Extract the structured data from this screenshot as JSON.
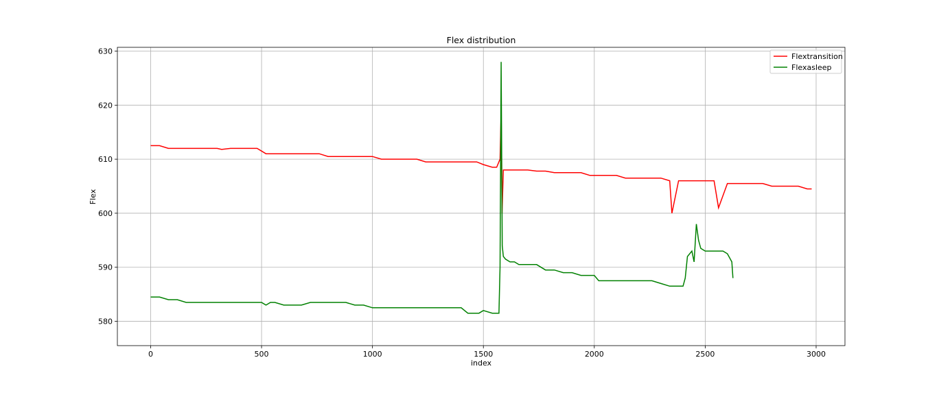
{
  "chart_data": {
    "type": "line",
    "title": "Flex distribution",
    "xlabel": "index",
    "ylabel": "Flex",
    "xlim": [
      -150,
      3130
    ],
    "ylim": [
      575.5,
      630.7
    ],
    "xticks": [
      0,
      500,
      1000,
      1500,
      2000,
      2500,
      3000
    ],
    "yticks": [
      580,
      590,
      600,
      610,
      620,
      630
    ],
    "grid": true,
    "legend_position": "top-right",
    "series": [
      {
        "name": "Flextransition",
        "color": "#ff0000",
        "x": [
          0,
          40,
          80,
          120,
          160,
          200,
          240,
          280,
          300,
          320,
          360,
          400,
          440,
          480,
          500,
          520,
          560,
          600,
          640,
          680,
          720,
          760,
          800,
          840,
          880,
          920,
          960,
          1000,
          1040,
          1080,
          1120,
          1160,
          1200,
          1240,
          1280,
          1320,
          1360,
          1400,
          1440,
          1470,
          1500,
          1540,
          1560,
          1575,
          1580,
          1584,
          1590,
          1600,
          1620,
          1640,
          1660,
          1700,
          1740,
          1780,
          1820,
          1860,
          1900,
          1940,
          1980,
          2020,
          2060,
          2100,
          2140,
          2180,
          2220,
          2260,
          2300,
          2340,
          2350,
          2380,
          2420,
          2460,
          2500,
          2540,
          2560,
          2600,
          2640,
          2680,
          2720,
          2760,
          2800,
          2840,
          2880,
          2920,
          2960,
          2980
        ],
        "y": [
          612.5,
          612.5,
          612,
          612,
          612,
          612,
          612,
          612,
          612,
          611.8,
          612,
          612,
          612,
          612,
          611.5,
          611,
          611,
          611,
          611,
          611,
          611,
          611,
          610.5,
          610.5,
          610.5,
          610.5,
          610.5,
          610.5,
          610,
          610,
          610,
          610,
          610,
          609.5,
          609.5,
          609.5,
          609.5,
          609.5,
          609.5,
          609.5,
          609,
          608.5,
          608.5,
          610,
          619,
          600,
          608,
          608,
          608,
          608,
          608,
          608,
          607.8,
          607.8,
          607.5,
          607.5,
          607.5,
          607.5,
          607,
          607,
          607,
          607,
          606.5,
          606.5,
          606.5,
          606.5,
          606.5,
          606,
          600,
          606,
          606,
          606,
          606,
          606,
          601,
          605.5,
          605.5,
          605.5,
          605.5,
          605.5,
          605,
          605,
          605,
          605,
          604.5,
          604.5
        ]
      },
      {
        "name": "Flexasleep",
        "color": "#008000",
        "x": [
          0,
          40,
          80,
          120,
          160,
          200,
          240,
          280,
          320,
          360,
          400,
          440,
          480,
          500,
          520,
          540,
          560,
          600,
          640,
          680,
          720,
          760,
          800,
          840,
          880,
          920,
          960,
          1000,
          1040,
          1080,
          1120,
          1160,
          1200,
          1240,
          1280,
          1320,
          1360,
          1400,
          1430,
          1460,
          1480,
          1500,
          1540,
          1570,
          1575,
          1580,
          1585,
          1590,
          1600,
          1620,
          1640,
          1660,
          1700,
          1740,
          1780,
          1820,
          1860,
          1900,
          1940,
          1980,
          2000,
          2020,
          2060,
          2100,
          2140,
          2180,
          2220,
          2260,
          2300,
          2340,
          2380,
          2400,
          2410,
          2420,
          2440,
          2450,
          2460,
          2470,
          2480,
          2500,
          2540,
          2580,
          2600,
          2620,
          2625
        ],
        "y": [
          584.5,
          584.5,
          584,
          584,
          583.5,
          583.5,
          583.5,
          583.5,
          583.5,
          583.5,
          583.5,
          583.5,
          583.5,
          583.5,
          583,
          583.5,
          583.5,
          583,
          583,
          583,
          583.5,
          583.5,
          583.5,
          583.5,
          583.5,
          583,
          583,
          582.5,
          582.5,
          582.5,
          582.5,
          582.5,
          582.5,
          582.5,
          582.5,
          582.5,
          582.5,
          582.5,
          581.5,
          581.5,
          581.5,
          582,
          581.5,
          581.5,
          590,
          628,
          594,
          592,
          591.5,
          591,
          591,
          590.5,
          590.5,
          590.5,
          589.5,
          589.5,
          589,
          589,
          588.5,
          588.5,
          588.5,
          587.5,
          587.5,
          587.5,
          587.5,
          587.5,
          587.5,
          587.5,
          587,
          586.5,
          586.5,
          586.5,
          588,
          592,
          593,
          591,
          598,
          595,
          593.5,
          593,
          593,
          593,
          592.5,
          591,
          588
        ]
      }
    ]
  }
}
